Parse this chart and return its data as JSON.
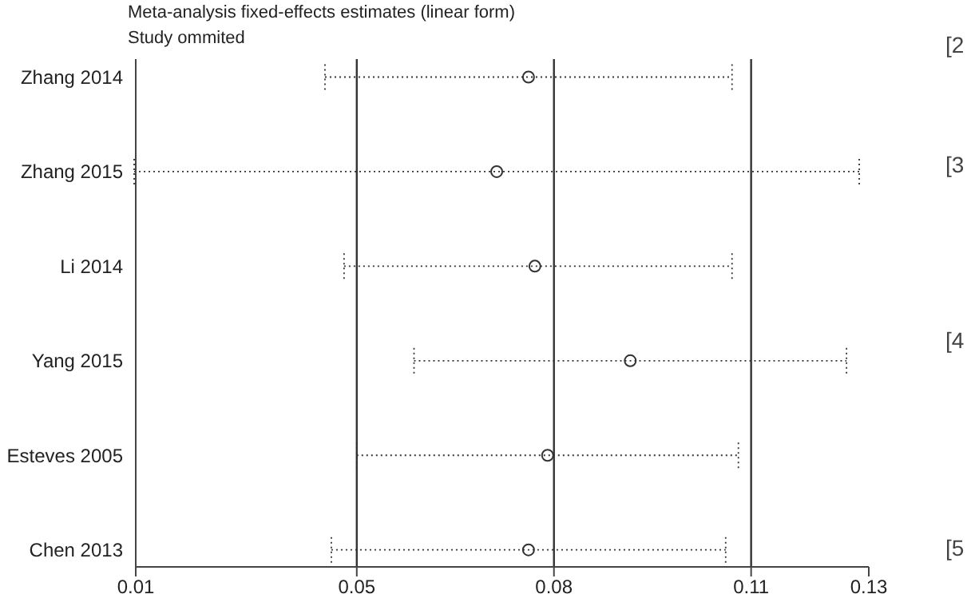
{
  "chart_data": {
    "type": "scatter",
    "title": "Meta-analysis fixed-effects estimates (linear form)",
    "subtitle": "Study ommited",
    "categories": [
      "Zhang 2014",
      "Zhang 2015",
      "Li 2014",
      "Yang 2015",
      "Esteves 2005",
      "Chen 2013"
    ],
    "orientation": "horizontal",
    "color": "#333333",
    "values": [
      0.074,
      0.069,
      0.075,
      0.09,
      0.077,
      0.074
    ],
    "errors": [
      [
        0.042,
        0.106
      ],
      [
        0.012,
        0.126
      ],
      [
        0.045,
        0.106
      ],
      [
        0.056,
        0.124
      ],
      [
        0.047,
        0.107
      ],
      [
        0.043,
        0.105
      ]
    ],
    "xlim": [
      0.01225,
      0.1275
    ],
    "xticks": [
      {
        "value": 0.01225,
        "label": "0.01"
      },
      {
        "value": 0.047,
        "label": "0.05"
      },
      {
        "value": 0.078,
        "label": "0.08"
      },
      {
        "value": 0.109,
        "label": "0.11"
      },
      {
        "value": 0.1275,
        "label": "0.13"
      }
    ],
    "ref_lines": [
      {
        "axis": "x",
        "value": 0.047,
        "color": "#333333"
      },
      {
        "axis": "x",
        "value": 0.078,
        "color": "#333333"
      },
      {
        "axis": "x",
        "value": 0.109,
        "color": "#333333"
      }
    ],
    "marker": "circle",
    "line_style": "dotted",
    "grid": false,
    "legend": false,
    "annotations": [
      "[2",
      "[3",
      "[4",
      "[5"
    ]
  }
}
